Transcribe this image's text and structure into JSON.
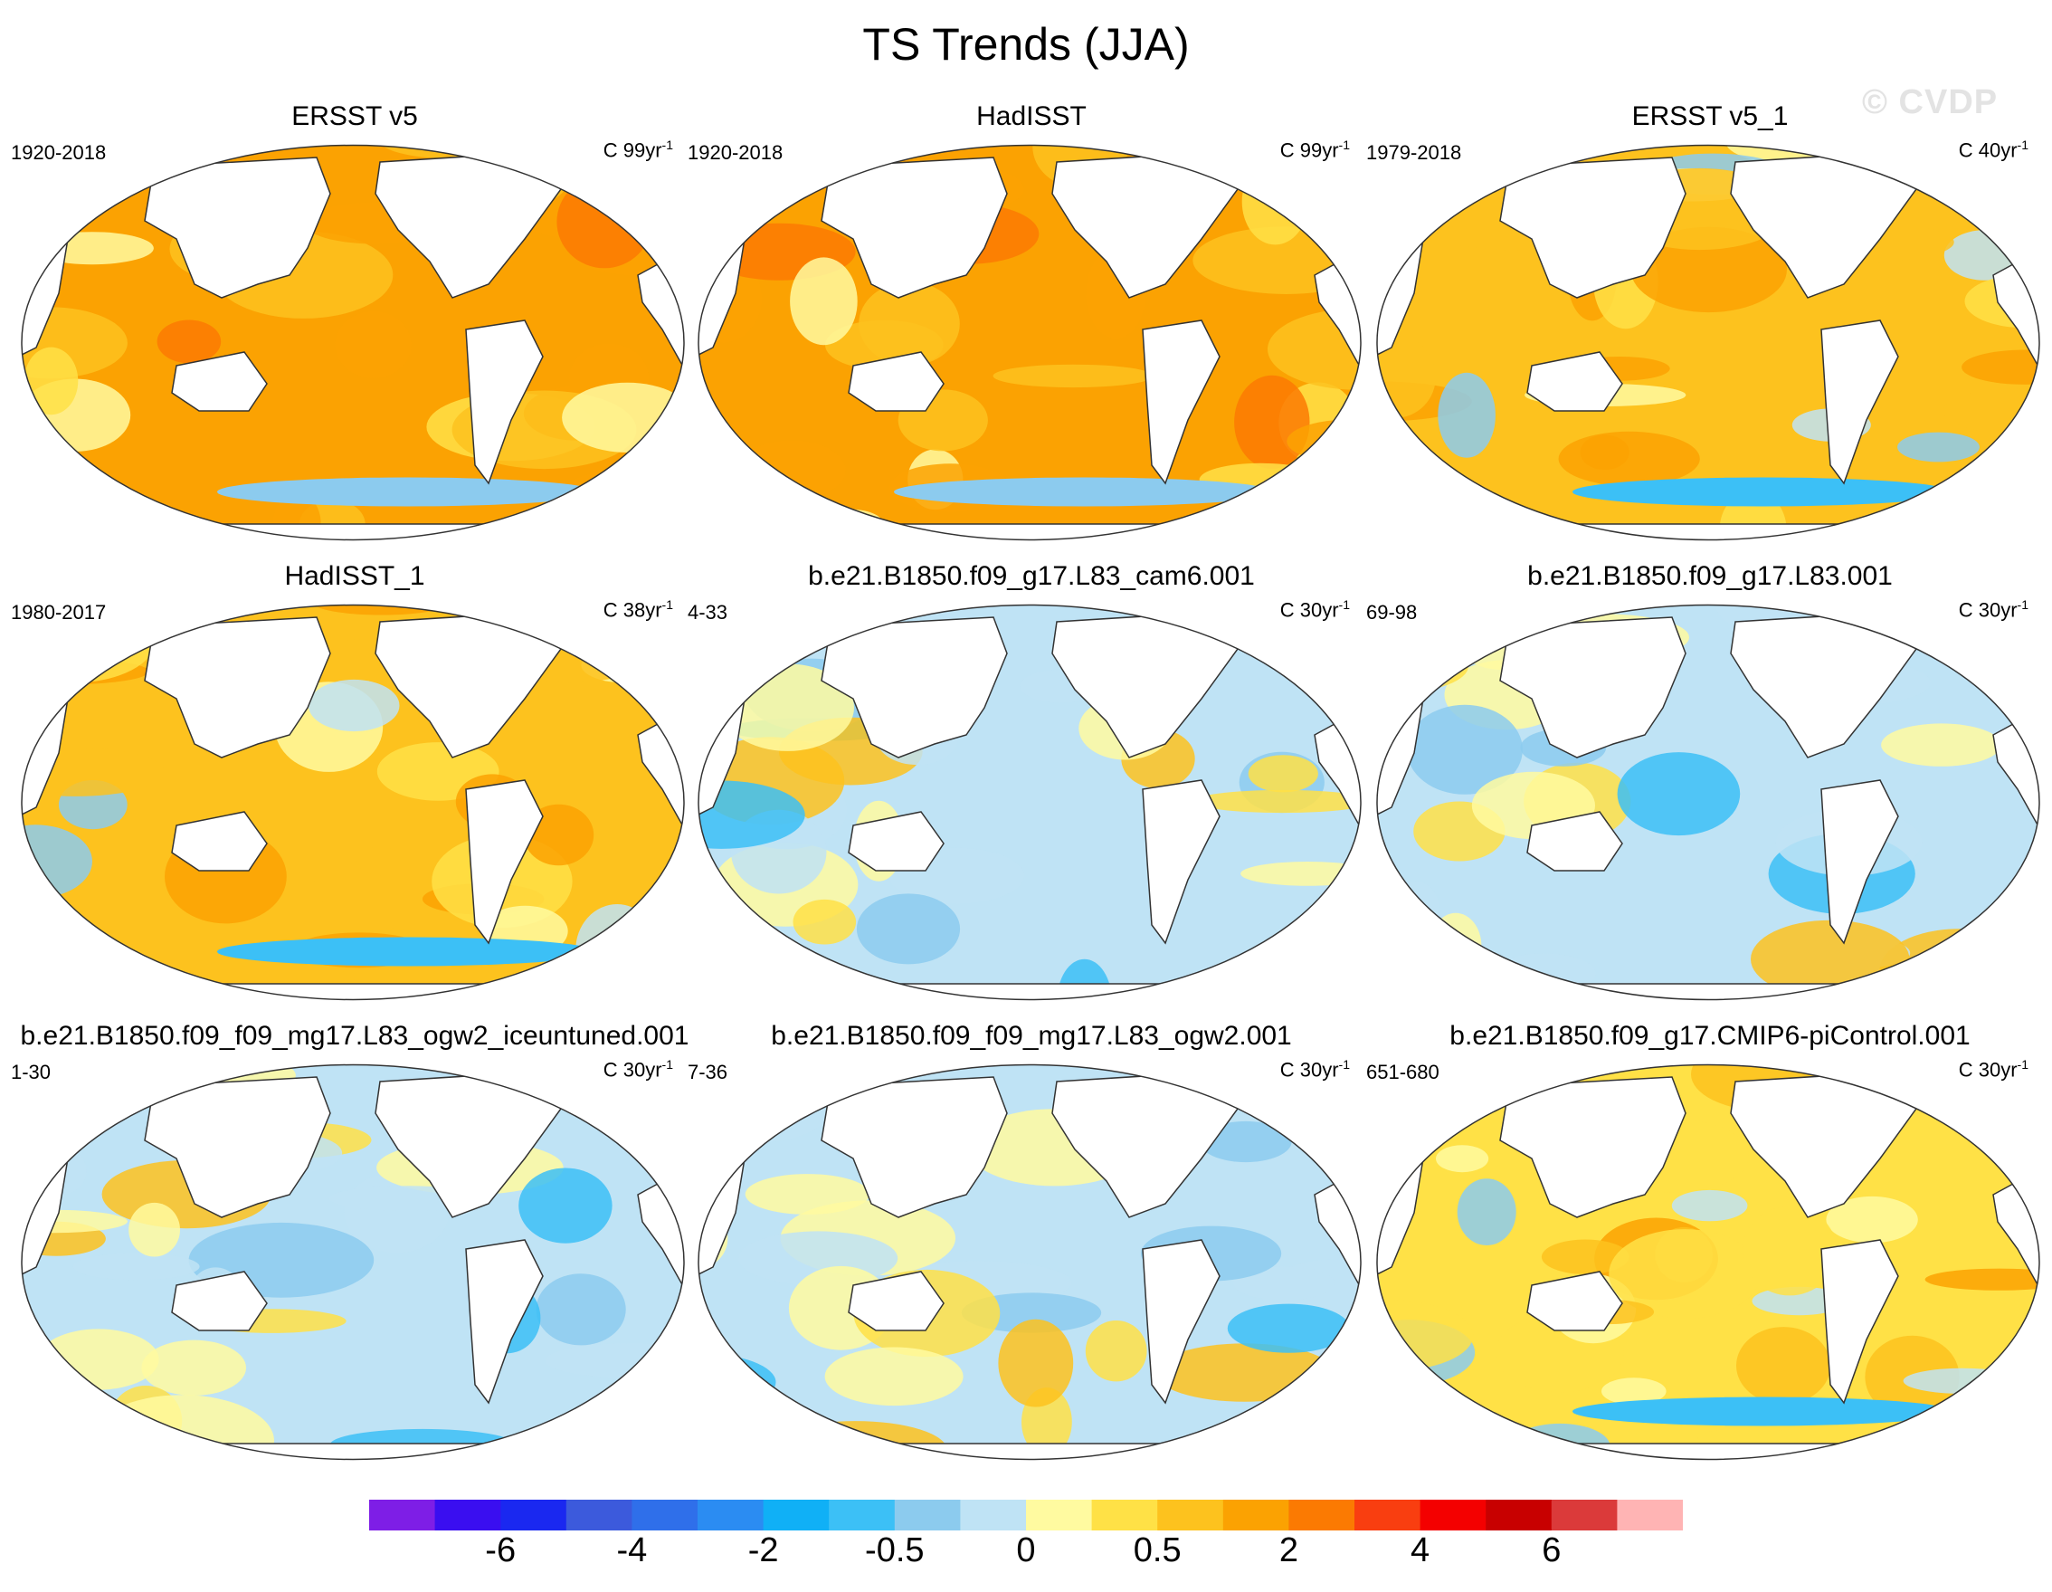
{
  "title": "TS Trends (JJA)",
  "watermark": "© CVDP",
  "panels": [
    {
      "title": "ERSST v5",
      "period": "1920-2018",
      "units": "C 99yr",
      "units_exp": "-1",
      "regime": "warm"
    },
    {
      "title": "HadISST",
      "period": "1920-2018",
      "units": "C 99yr",
      "units_exp": "-1",
      "regime": "warm"
    },
    {
      "title": "ERSST v5_1",
      "period": "1979-2018",
      "units": "C 40yr",
      "units_exp": "-1",
      "regime": "warm-mixed"
    },
    {
      "title": "HadISST_1",
      "period": "1980-2017",
      "units": "C 38yr",
      "units_exp": "-1",
      "regime": "warm-mixed"
    },
    {
      "title": "b.e21.B1850.f09_g17.L83_cam6.001",
      "period": "4-33",
      "units": "C 30yr",
      "units_exp": "-1",
      "regime": "mixed"
    },
    {
      "title": "b.e21.B1850.f09_g17.L83.001",
      "period": "69-98",
      "units": "C 30yr",
      "units_exp": "-1",
      "regime": "mixed"
    },
    {
      "title": "b.e21.B1850.f09_f09_mg17.L83_ogw2_iceuntuned.001",
      "period": "1-30",
      "units": "C 30yr",
      "units_exp": "-1",
      "regime": "mixed"
    },
    {
      "title": "b.e21.B1850.f09_f09_mg17.L83_ogw2.001",
      "period": "7-36",
      "units": "C 30yr",
      "units_exp": "-1",
      "regime": "mixed"
    },
    {
      "title": "b.e21.B1850.f09_g17.CMIP6-piControl.001",
      "period": "651-680",
      "units": "C 30yr",
      "units_exp": "-1",
      "regime": "mixed-warm"
    }
  ],
  "colorbar": {
    "colors": [
      "#7e1ee6",
      "#3a0ef0",
      "#1a28f0",
      "#3c5adc",
      "#2f6fea",
      "#2b8cf2",
      "#10b0f6",
      "#3cc0f6",
      "#8ccbee",
      "#bfe3f5",
      "#fffaa0",
      "#ffe146",
      "#fdc21e",
      "#fba202",
      "#fb7a02",
      "#f93e10",
      "#f40000",
      "#c80000",
      "#db3a3a",
      "#ffb4b4"
    ],
    "labels": [
      "-6",
      "-4",
      "-2",
      "-0.5",
      "0",
      "0.5",
      "2",
      "4",
      "6"
    ]
  }
}
